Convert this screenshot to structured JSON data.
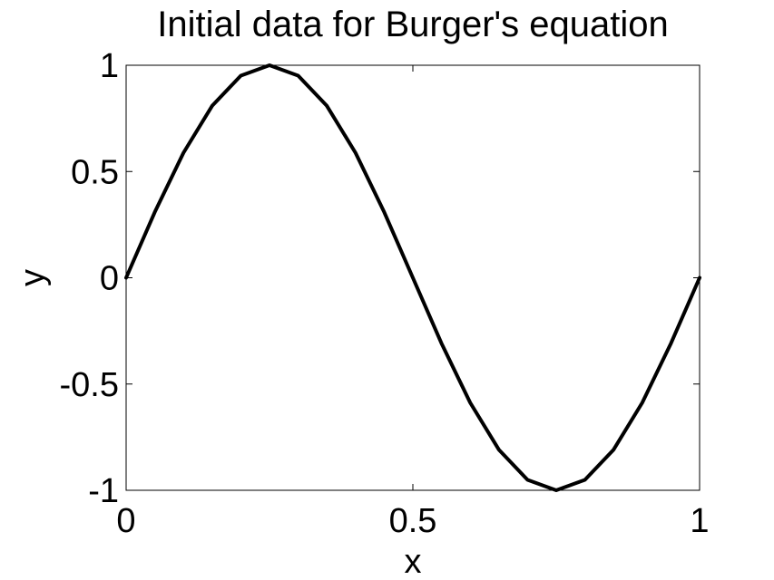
{
  "chart_data": {
    "type": "line",
    "title": "Initial data for Burger's equation",
    "xlabel": "x",
    "ylabel": "y",
    "xlim": [
      0,
      1
    ],
    "ylim": [
      -1,
      1
    ],
    "xticks": [
      0,
      0.5,
      1
    ],
    "xtick_labels": [
      "0",
      "0.5",
      "1"
    ],
    "yticks": [
      -1,
      -0.5,
      0,
      0.5,
      1
    ],
    "ytick_labels": [
      "-1",
      "-0.5",
      "0",
      "0.5",
      "1"
    ],
    "grid": false,
    "line_color": "#000000",
    "series": [
      {
        "x": [
          0,
          0.05,
          0.1,
          0.15,
          0.2,
          0.25,
          0.3,
          0.35,
          0.4,
          0.45,
          0.5,
          0.55,
          0.6,
          0.65,
          0.7,
          0.75,
          0.8,
          0.85,
          0.9,
          0.95,
          1
        ],
        "y": [
          0,
          0.309,
          0.588,
          0.809,
          0.951,
          1,
          0.951,
          0.809,
          0.588,
          0.309,
          0,
          -0.309,
          -0.588,
          -0.809,
          -0.951,
          -1,
          -0.951,
          -0.809,
          -0.588,
          -0.309,
          0
        ]
      }
    ]
  }
}
